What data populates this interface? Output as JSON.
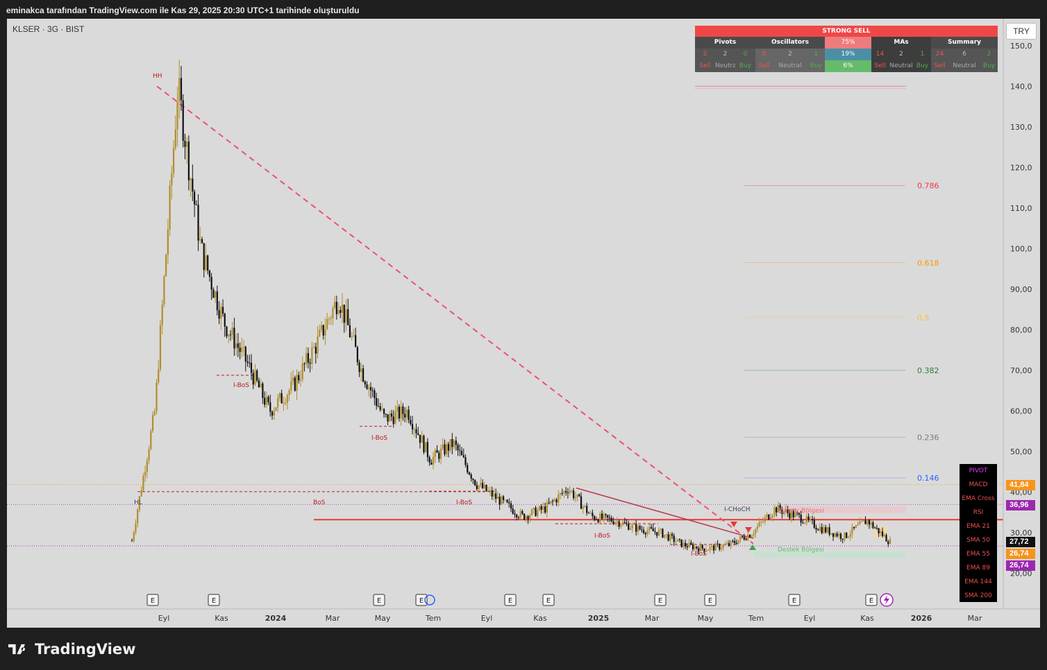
{
  "caption": "eminakca tarafından TradingView.com ile Kas 29, 2025 20:30 UTC+1 tarihinde oluşturuldu",
  "symbol": "KLSER · 3G · BIST",
  "currency": "TRY",
  "brand": "TradingView",
  "signals": {
    "header": "STRONG SELL",
    "groups": [
      {
        "name": "Pivots",
        "sell": "2",
        "neutral": "2",
        "buy": "0"
      },
      {
        "name": "Oscillators",
        "sell": "8",
        "neutral": "2",
        "buy": "1"
      },
      {
        "name": "MAs",
        "sell": "14",
        "neutral": "2",
        "buy": "1"
      },
      {
        "name": "Summary",
        "sell": "24",
        "neutral": "6",
        "buy": "2"
      }
    ],
    "pct": [
      "75%",
      "19%",
      "6%"
    ],
    "labels": {
      "sell": "Sell",
      "neutral": "Neutral",
      "buy": "Buy"
    }
  },
  "ema_panel": [
    "PIVOT",
    "MACD",
    "EMA Cross",
    "RSI",
    "EMA 21",
    "SMA 50",
    "EMA 55",
    "EMA 89",
    "EMA 144",
    "SMA 200"
  ],
  "price_tags": [
    {
      "value": "41,84",
      "color": "#f7941d"
    },
    {
      "value": "36,96",
      "color": "#9c27b0"
    },
    {
      "value": "27,72",
      "color": "#111111"
    },
    {
      "value": "26,74",
      "color": "#f7941d"
    },
    {
      "value": "26,74",
      "color": "#9c27b0"
    }
  ],
  "colors": {
    "bull": "#b08d2b",
    "bear": "#111111",
    "resistance": "#e53935",
    "hh_line": "#f06292"
  },
  "chart_data": {
    "type": "candlestick",
    "title": "",
    "xlabel": "",
    "ylabel": "",
    "ylim": [
      20,
      150
    ],
    "y_ticks": [
      "150,0",
      "140,0",
      "130,0",
      "120,0",
      "110,0",
      "100,0",
      "90,00",
      "80,00",
      "70,00",
      "60,00",
      "50,00",
      "40,00",
      "30,00",
      "20,00"
    ],
    "x_ticks": [
      "Eyl",
      "Kas",
      "2024",
      "Mar",
      "May",
      "Tem",
      "Eyl",
      "Kas",
      "2025",
      "Mar",
      "May",
      "Tem",
      "Eyl",
      "Kas",
      "2026",
      "Mar"
    ],
    "grid": false,
    "price_series": [
      {
        "label": "2023-07",
        "value": 28
      },
      {
        "label": "2023-08",
        "value": 60
      },
      {
        "label": "2023-08-peak",
        "value": 140
      },
      {
        "label": "2023-09",
        "value": 100
      },
      {
        "label": "2023-10",
        "value": 82
      },
      {
        "label": "2023-11",
        "value": 72
      },
      {
        "label": "2023-12",
        "value": 60
      },
      {
        "label": "2024-01",
        "value": 66
      },
      {
        "label": "2024-02",
        "value": 76
      },
      {
        "label": "2024-02-peak",
        "value": 88
      },
      {
        "label": "2024-03",
        "value": 70
      },
      {
        "label": "2024-04",
        "value": 58
      },
      {
        "label": "2024-05",
        "value": 60
      },
      {
        "label": "2024-06",
        "value": 48
      },
      {
        "label": "2024-07",
        "value": 52
      },
      {
        "label": "2024-08",
        "value": 42
      },
      {
        "label": "2024-09",
        "value": 38
      },
      {
        "label": "2024-10",
        "value": 34
      },
      {
        "label": "2024-11",
        "value": 36
      },
      {
        "label": "2024-11-peak",
        "value": 41
      },
      {
        "label": "2024-12",
        "value": 34
      },
      {
        "label": "2025-01",
        "value": 33
      },
      {
        "label": "2025-02",
        "value": 31
      },
      {
        "label": "2025-03",
        "value": 30
      },
      {
        "label": "2025-04",
        "value": 27
      },
      {
        "label": "2025-05",
        "value": 26
      },
      {
        "label": "2025-06",
        "value": 27
      },
      {
        "label": "2025-07",
        "value": 30
      },
      {
        "label": "2025-07-peak",
        "value": 36
      },
      {
        "label": "2025-08",
        "value": 34
      },
      {
        "label": "2025-09",
        "value": 31
      },
      {
        "label": "2025-10",
        "value": 29
      },
      {
        "label": "2025-10-peak",
        "value": 33
      },
      {
        "label": "2025-11",
        "value": 27.72
      }
    ],
    "fibonacci": [
      {
        "level": "0.786",
        "price": 115.5,
        "color": "#f23645"
      },
      {
        "level": "0.618",
        "price": 96.5,
        "color": "#ff9800"
      },
      {
        "level": "0.5",
        "price": 83,
        "color": "#fbc02d"
      },
      {
        "level": "0.382",
        "price": 70,
        "color": "#2e7d32"
      },
      {
        "level": "0.236",
        "price": 53.5,
        "color": "#787b86"
      },
      {
        "level": "0.146",
        "price": 43.5,
        "color": "#2962ff"
      }
    ],
    "annotations": [
      "HH",
      "HL",
      "BoS",
      "I-BoS",
      "I-BoS",
      "I-BoS",
      "I-BoS",
      "I-BoS",
      "I-CHoCH",
      "Direnç Bölgesi",
      "Destek Bölgesi"
    ],
    "event_marker": "E"
  }
}
